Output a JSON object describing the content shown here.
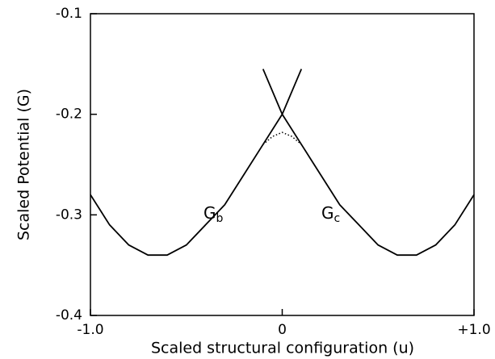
{
  "chart_data": {
    "type": "line",
    "x_label": "Scaled structural configuration (u)",
    "y_label": "Scaled  Potential  (G)",
    "annotations": [
      {
        "text": "G",
        "sub": "b"
      },
      {
        "text": "G",
        "sub": "c"
      }
    ],
    "series": [
      {
        "color": "#000000",
        "style": "solid",
        "x": [
          -1.0,
          -0.9,
          -0.8,
          -0.7,
          -0.6,
          -0.5,
          -0.4,
          -0.3,
          -0.2,
          -0.1,
          0,
          0.1
        ],
        "values": [
          -0.28,
          -0.31,
          -0.33,
          -0.34,
          -0.34,
          -0.33,
          -0.31,
          -0.29,
          -0.26,
          -0.23,
          -0.2,
          -0.155
        ]
      },
      {
        "color": "#000000",
        "style": "solid",
        "x": [
          -0.1,
          0,
          0.1,
          0.2,
          0.3,
          0.4,
          0.5,
          0.6,
          0.7,
          0.8,
          0.9,
          1.0
        ],
        "values": [
          -0.155,
          -0.2,
          -0.23,
          -0.26,
          -0.29,
          -0.31,
          -0.33,
          -0.34,
          -0.34,
          -0.33,
          -0.31,
          -0.28
        ]
      },
      {
        "color": "#000000",
        "style": "dotted",
        "x": [
          -0.1,
          -0.05,
          0,
          0.05,
          0.1
        ],
        "values": [
          -0.23,
          -0.222,
          -0.218,
          -0.222,
          -0.23
        ]
      }
    ],
    "xlim": [
      -1.0,
      1.0
    ],
    "xticks": [
      {
        "value": -1.0,
        "label": "-1.0"
      },
      0,
      {
        "value": 1.0,
        "label": "+1.0"
      }
    ],
    "ylim": [
      -0.4,
      -0.1
    ],
    "yticks": [
      -0.1,
      -0.2,
      -0.3,
      -0.4
    ],
    "grid": false
  }
}
